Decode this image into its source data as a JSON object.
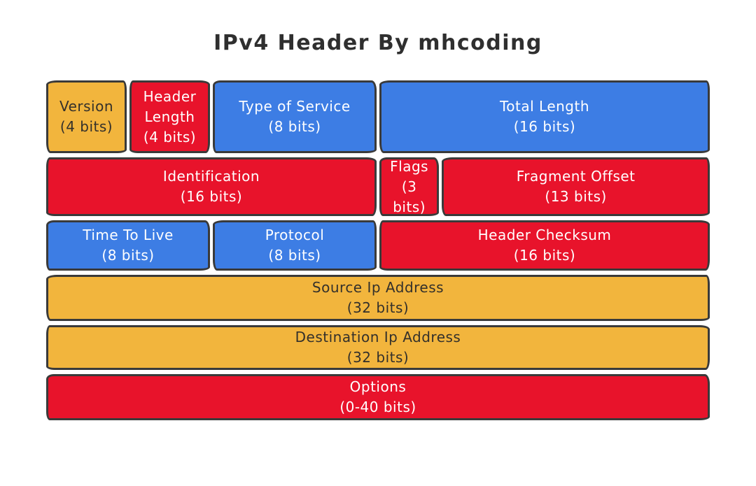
{
  "title": "IPv4 Header By mhcoding",
  "colors": {
    "yellow": "#F2B53D",
    "red": "#E8132B",
    "blue": "#3D7DE4",
    "outline": "#3A3A3A",
    "dark_text": "#33302B",
    "light_text": "#FFFFFF",
    "title_text": "#2F2F2F"
  },
  "diagram": {
    "type": "packet-header-layout",
    "total_bits_per_row": 32,
    "rows": [
      {
        "fields": [
          {
            "label": "Version",
            "bits": "(4 bits)",
            "span": 4,
            "color": "yellow"
          },
          {
            "label": "Header Length",
            "bits": "(4 bits)",
            "span": 4,
            "color": "red"
          },
          {
            "label": "Type of Service",
            "bits": "(8 bits)",
            "span": 8,
            "color": "blue"
          },
          {
            "label": "Total Length",
            "bits": "(16 bits)",
            "span": 16,
            "color": "blue"
          }
        ]
      },
      {
        "fields": [
          {
            "label": "Identification",
            "bits": "(16 bits)",
            "span": 16,
            "color": "red"
          },
          {
            "label": "Flags",
            "bits": "(3 bits)",
            "span": 3,
            "color": "red"
          },
          {
            "label": "Fragment Offset",
            "bits": "(13 bits)",
            "span": 13,
            "color": "red"
          }
        ]
      },
      {
        "fields": [
          {
            "label": "Time To Live",
            "bits": "(8 bits)",
            "span": 8,
            "color": "blue"
          },
          {
            "label": "Protocol",
            "bits": "(8 bits)",
            "span": 8,
            "color": "blue"
          },
          {
            "label": "Header Checksum",
            "bits": "(16 bits)",
            "span": 16,
            "color": "red"
          }
        ]
      },
      {
        "fields": [
          {
            "label": "Source Ip Address",
            "bits": "(32 bits)",
            "span": 32,
            "color": "yellow"
          }
        ]
      },
      {
        "fields": [
          {
            "label": "Destination Ip Address",
            "bits": "(32 bits)",
            "span": 32,
            "color": "yellow"
          }
        ]
      },
      {
        "fields": [
          {
            "label": "Options",
            "bits": "(0-40 bits)",
            "span": 32,
            "color": "red"
          }
        ]
      }
    ]
  }
}
